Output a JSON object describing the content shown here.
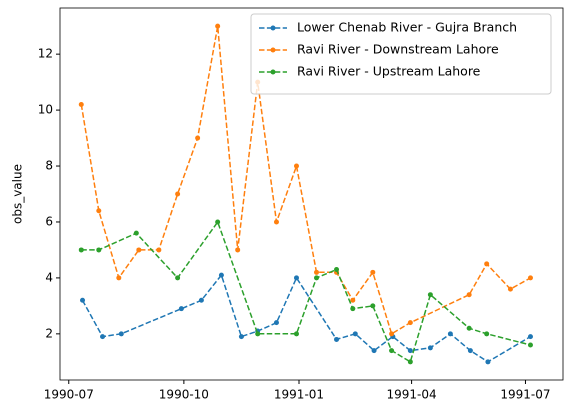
{
  "chart_data": {
    "type": "line",
    "y_label": "obs_value",
    "xlim": [
      "1990-06-24",
      "1991-07-31"
    ],
    "xticks": [
      {
        "value": "1990-07-01",
        "label": "1990-07"
      },
      {
        "value": "1990-10-01",
        "label": "1990-10"
      },
      {
        "value": "1991-01-01",
        "label": "1991-01"
      },
      {
        "value": "1991-04-01",
        "label": "1991-04"
      },
      {
        "value": "1991-07-01",
        "label": "1991-07"
      }
    ],
    "ylim": [
      0.35,
      13.65
    ],
    "yticks": [
      2,
      4,
      6,
      8,
      10,
      12
    ],
    "legend": "upper right",
    "line_style": "dashed",
    "series": [
      {
        "name": "Lower Chenab River - Gujra Branch",
        "color": "#1f77b4",
        "x": [
          "1990-07-12",
          "1990-07-28",
          "1990-08-12",
          "1990-09-29",
          "1990-10-15",
          "1990-10-31",
          "1990-11-16",
          "1990-11-29",
          "1990-12-14",
          "1990-12-30",
          "1991-01-31",
          "1991-02-15",
          "1991-03-02",
          "1991-03-17",
          "1991-03-31",
          "1991-04-16",
          "1991-05-02",
          "1991-05-18",
          "1991-06-01",
          "1991-07-05"
        ],
        "values": [
          3.2,
          1.9,
          2.0,
          2.9,
          3.2,
          4.1,
          1.9,
          2.1,
          2.4,
          4.0,
          1.8,
          2.0,
          1.4,
          1.9,
          1.4,
          1.5,
          2.0,
          1.4,
          1.0,
          1.9
        ]
      },
      {
        "name": "Ravi River - Downstream Lahore",
        "color": "#ff7f0e",
        "x": [
          "1990-07-11",
          "1990-07-25",
          "1990-08-10",
          "1990-08-26",
          "1990-09-11",
          "1990-09-26",
          "1990-10-12",
          "1990-10-28",
          "1990-11-13",
          "1990-11-29",
          "1990-12-14",
          "1990-12-30",
          "1991-01-15",
          "1991-01-31",
          "1991-02-13",
          "1991-03-01",
          "1991-03-16",
          "1991-03-31",
          "1991-05-17",
          "1991-05-31",
          "1991-06-19",
          "1991-07-05"
        ],
        "values": [
          10.2,
          6.4,
          4.0,
          5.0,
          5.0,
          7.0,
          9.0,
          13.0,
          5.0,
          11.0,
          6.0,
          8.0,
          4.2,
          4.2,
          3.2,
          4.2,
          2.0,
          2.4,
          3.4,
          4.5,
          3.6,
          4.0
        ]
      },
      {
        "name": "Ravi River - Upstream Lahore",
        "color": "#2ca02c",
        "x": [
          "1990-07-11",
          "1990-07-25",
          "1990-08-24",
          "1990-09-26",
          "1990-10-28",
          "1990-11-29",
          "1990-12-30",
          "1991-01-15",
          "1991-01-31",
          "1991-02-13",
          "1991-03-01",
          "1991-03-16",
          "1991-03-31",
          "1991-04-16",
          "1991-05-17",
          "1991-05-31",
          "1991-07-05"
        ],
        "values": [
          5.0,
          5.0,
          5.6,
          4.0,
          6.0,
          2.0,
          2.0,
          4.0,
          4.3,
          2.9,
          3.0,
          1.4,
          1.0,
          3.4,
          2.2,
          2.0,
          1.6
        ]
      }
    ]
  }
}
